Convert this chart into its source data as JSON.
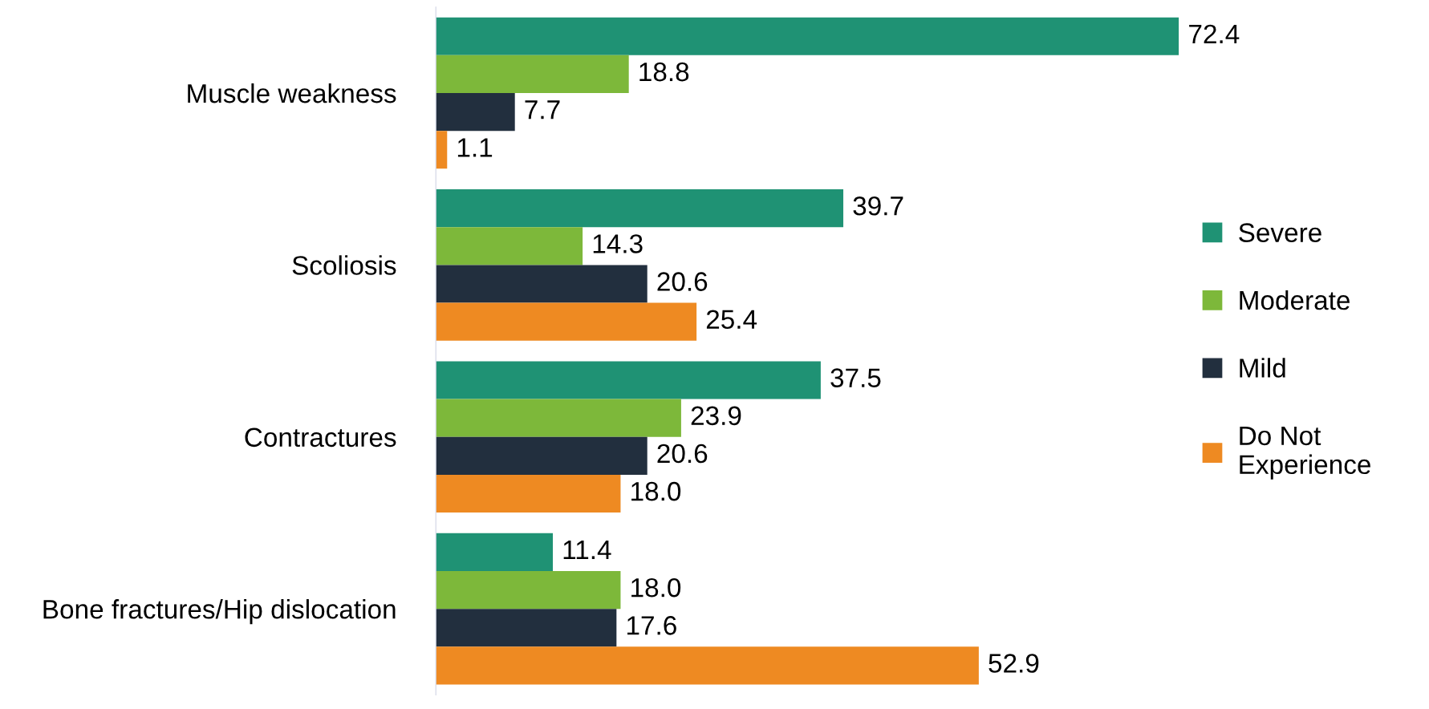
{
  "chart_data": {
    "type": "bar",
    "orientation": "horizontal",
    "categories": [
      "Muscle weakness",
      "Scoliosis",
      "Contractures",
      "Bone fractures/Hip dislocation"
    ],
    "series": [
      {
        "name": "Severe",
        "color": "#1f9274",
        "values": [
          72.4,
          39.7,
          37.5,
          11.4
        ],
        "value_labels": [
          "72.4",
          "39.7",
          "37.5",
          "11.4"
        ]
      },
      {
        "name": "Moderate",
        "color": "#7db83a",
        "values": [
          18.8,
          14.3,
          23.9,
          18.0
        ],
        "value_labels": [
          "18.8",
          "14.3",
          "23.9",
          "18.0"
        ]
      },
      {
        "name": "Mild",
        "color": "#222f3e",
        "values": [
          7.7,
          20.6,
          20.6,
          17.6
        ],
        "value_labels": [
          "7.7",
          "20.6",
          "20.6",
          "17.6"
        ]
      },
      {
        "name": "Do Not\nExperience",
        "color": "#ee8a22",
        "values": [
          1.1,
          25.4,
          18.0,
          52.9
        ],
        "value_labels": [
          "1.1",
          "25.4",
          "18.0",
          "52.9"
        ]
      }
    ],
    "legend": "right",
    "grid": false
  }
}
